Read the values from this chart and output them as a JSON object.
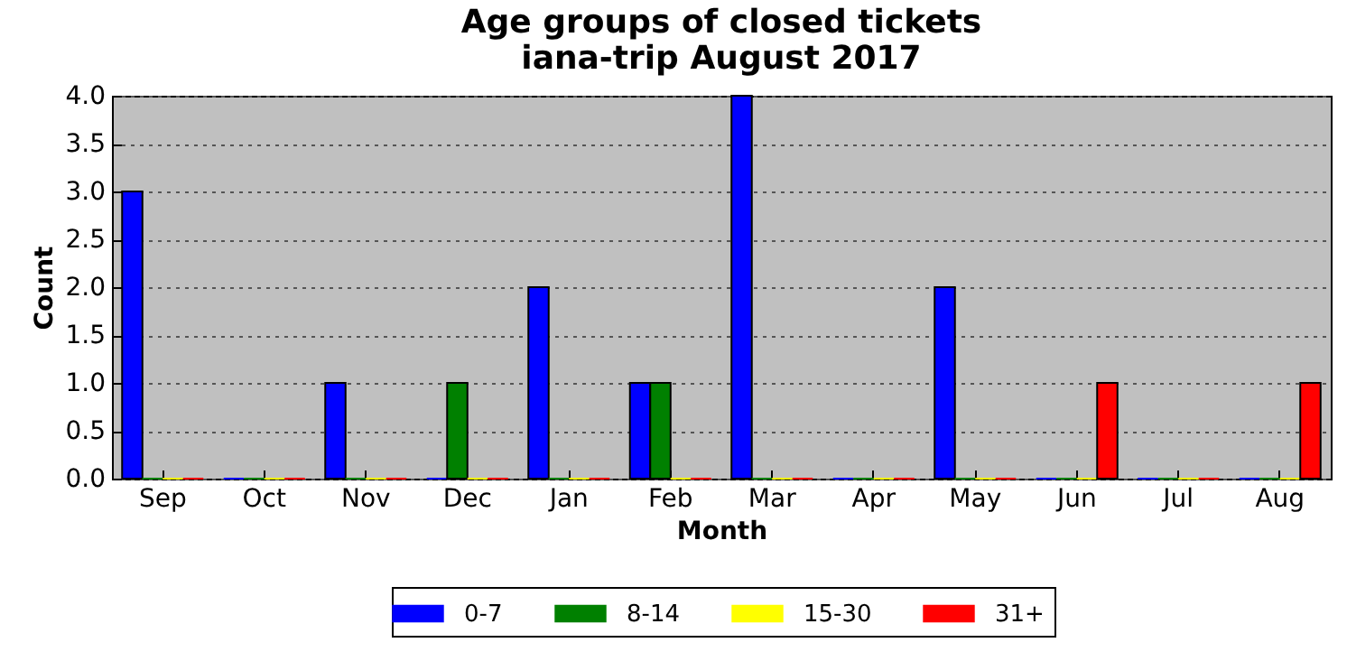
{
  "chart_data": {
    "type": "bar",
    "title": "Age groups of closed tickets",
    "subtitle": "iana-trip August 2017",
    "xlabel": "Month",
    "ylabel": "Count",
    "categories": [
      "Sep",
      "Oct",
      "Nov",
      "Dec",
      "Jan",
      "Feb",
      "Mar",
      "Apr",
      "May",
      "Jun",
      "Jul",
      "Aug"
    ],
    "series": [
      {
        "name": "0-7",
        "color": "#0000ff",
        "values": [
          3,
          0,
          1,
          0,
          2,
          1,
          4,
          0,
          2,
          0,
          0,
          0
        ]
      },
      {
        "name": "8-14",
        "color": "#008000",
        "values": [
          0,
          0,
          0,
          1,
          0,
          1,
          0,
          0,
          0,
          0,
          0,
          0
        ]
      },
      {
        "name": "15-30",
        "color": "#ffff00",
        "values": [
          0,
          0,
          0,
          0,
          0,
          0,
          0,
          0,
          0,
          0,
          0,
          0
        ]
      },
      {
        "name": "31+",
        "color": "#ff0000",
        "values": [
          0,
          0,
          0,
          0,
          0,
          0,
          0,
          0,
          0,
          1,
          0,
          1
        ]
      }
    ],
    "ylim": [
      0,
      4
    ],
    "yticks": [
      {
        "value": 0,
        "label": "0.0"
      },
      {
        "value": 0.5,
        "label": "0.5"
      },
      {
        "value": 1,
        "label": "1.0"
      },
      {
        "value": 1.5,
        "label": "1.5"
      },
      {
        "value": 2,
        "label": "2.0"
      },
      {
        "value": 2.5,
        "label": "2.5"
      },
      {
        "value": 3,
        "label": "3.0"
      },
      {
        "value": 3.5,
        "label": "3.5"
      },
      {
        "value": 4,
        "label": "4.0"
      }
    ],
    "grid": "y",
    "legend": "bottom"
  }
}
